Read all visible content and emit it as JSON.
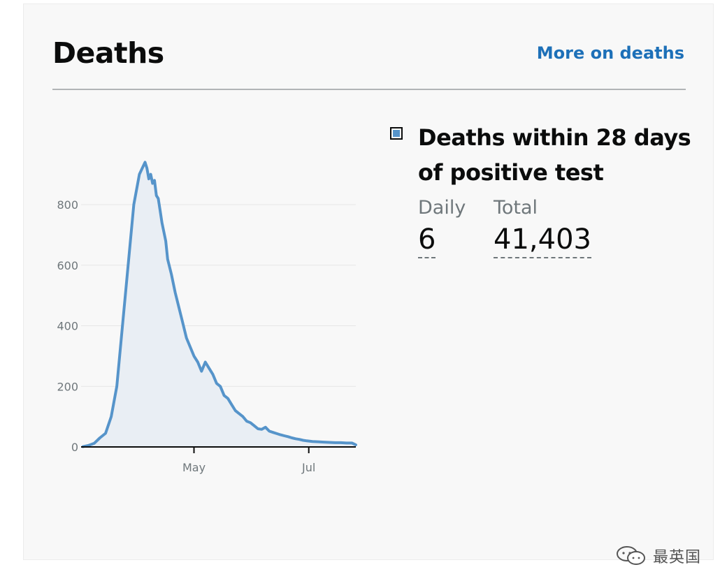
{
  "header": {
    "title": "Deaths",
    "more_link": "More on deaths"
  },
  "legend": {
    "metric_name": "Deaths within 28 days of positive test",
    "color": "#5694ca"
  },
  "stats": {
    "daily_label": "Daily",
    "daily_value": "6",
    "total_label": "Total",
    "total_value": "41,403"
  },
  "watermark": {
    "text": "最英国"
  },
  "chart_data": {
    "type": "area",
    "x_label_ticks": [
      "May",
      "Jul"
    ],
    "y_ticks": [
      0,
      200,
      400,
      600,
      800
    ],
    "ylim": [
      0,
      1000
    ],
    "xlim": [
      "2020-03-02",
      "2020-07-26"
    ],
    "x_tick_dates": [
      "2020-05-01",
      "2020-07-01"
    ],
    "series": [
      {
        "color": "#5694ca",
        "x": [
          "2020-03-03",
          "2020-03-06",
          "2020-03-09",
          "2020-03-12",
          "2020-03-15",
          "2020-03-18",
          "2020-03-21",
          "2020-03-24",
          "2020-03-27",
          "2020-03-30",
          "2020-04-02",
          "2020-04-05",
          "2020-04-06",
          "2020-04-07",
          "2020-04-08",
          "2020-04-09",
          "2020-04-10",
          "2020-04-11",
          "2020-04-12",
          "2020-04-13",
          "2020-04-14",
          "2020-04-15",
          "2020-04-16",
          "2020-04-17",
          "2020-04-19",
          "2020-04-21",
          "2020-04-23",
          "2020-04-25",
          "2020-04-27",
          "2020-04-29",
          "2020-05-01",
          "2020-05-03",
          "2020-05-05",
          "2020-05-07",
          "2020-05-09",
          "2020-05-11",
          "2020-05-13",
          "2020-05-15",
          "2020-05-17",
          "2020-05-19",
          "2020-05-21",
          "2020-05-23",
          "2020-05-25",
          "2020-05-27",
          "2020-05-29",
          "2020-05-31",
          "2020-06-02",
          "2020-06-04",
          "2020-06-06",
          "2020-06-08",
          "2020-06-10",
          "2020-06-12",
          "2020-06-14",
          "2020-06-16",
          "2020-06-18",
          "2020-06-20",
          "2020-06-22",
          "2020-06-24",
          "2020-06-26",
          "2020-06-28",
          "2020-06-30",
          "2020-07-03",
          "2020-07-06",
          "2020-07-09",
          "2020-07-12",
          "2020-07-15",
          "2020-07-18",
          "2020-07-21",
          "2020-07-24",
          "2020-07-26"
        ],
        "values": [
          1,
          5,
          12,
          30,
          45,
          100,
          200,
          400,
          600,
          800,
          900,
          940,
          920,
          885,
          900,
          870,
          880,
          830,
          820,
          780,
          740,
          710,
          680,
          620,
          570,
          510,
          460,
          410,
          360,
          330,
          300,
          280,
          250,
          280,
          260,
          240,
          210,
          200,
          170,
          160,
          140,
          120,
          110,
          100,
          85,
          80,
          70,
          60,
          58,
          65,
          52,
          48,
          44,
          40,
          37,
          34,
          30,
          27,
          25,
          22,
          20,
          18,
          17,
          16,
          15,
          14,
          14,
          13,
          13,
          7
        ]
      }
    ]
  }
}
